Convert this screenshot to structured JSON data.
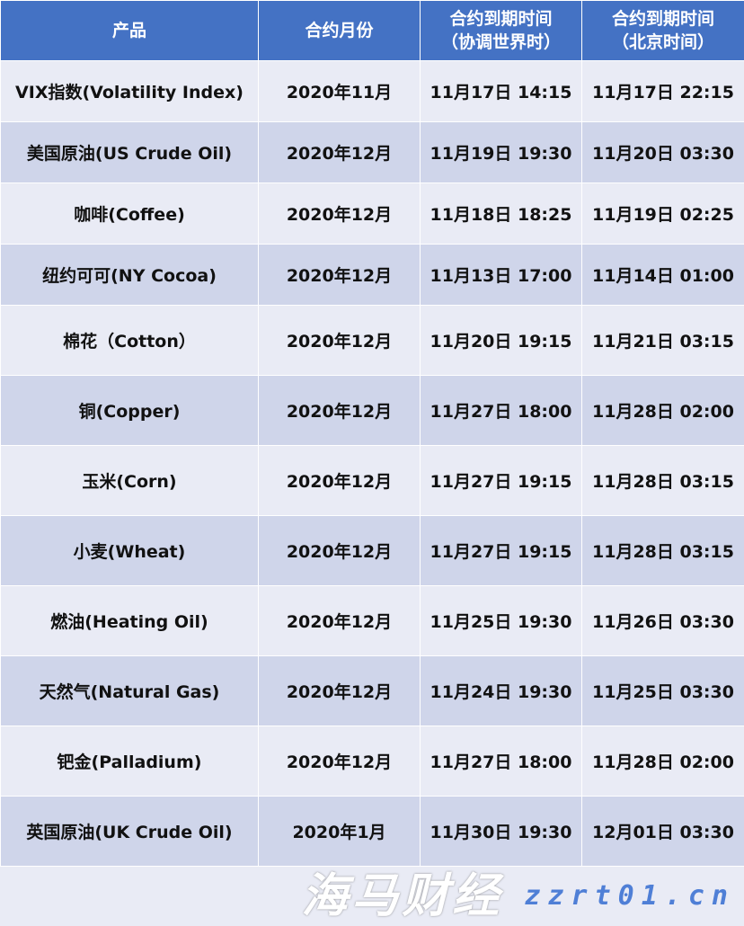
{
  "header": {
    "product": "产品",
    "month": "合约月份",
    "utc_line1": "合约到期时间",
    "utc_line2": "（协调世界时）",
    "bj_line1": "合约到期时间",
    "bj_line2": "（北京时间）"
  },
  "rows": [
    {
      "product": "VIX指数(Volatility Index)",
      "month": "2020年11月",
      "utc": "11月17日 14:15",
      "bj": "11月17日 22:15"
    },
    {
      "product": "美国原油(US Crude Oil)",
      "month": "2020年12月",
      "utc": "11月19日 19:30",
      "bj": "11月20日 03:30"
    },
    {
      "product": "咖啡(Coffee)",
      "month": "2020年12月",
      "utc": "11月18日 18:25",
      "bj": "11月19日 02:25"
    },
    {
      "product": "纽约可可(NY Cocoa)",
      "month": "2020年12月",
      "utc": "11月13日 17:00",
      "bj": "11月14日 01:00"
    },
    {
      "product": "棉花（Cotton）",
      "month": "2020年12月",
      "utc": "11月20日 19:15",
      "bj": "11月21日 03:15"
    },
    {
      "product": "铜(Copper)",
      "month": "2020年12月",
      "utc": "11月27日 18:00",
      "bj": "11月28日 02:00"
    },
    {
      "product": "玉米(Corn)",
      "month": "2020年12月",
      "utc": "11月27日 19:15",
      "bj": "11月28日 03:15"
    },
    {
      "product": "小麦(Wheat)",
      "month": "2020年12月",
      "utc": "11月27日 19:15",
      "bj": "11月28日 03:15"
    },
    {
      "product": "燃油(Heating Oil)",
      "month": "2020年12月",
      "utc": "11月25日 19:30",
      "bj": "11月26日 03:30"
    },
    {
      "product": "天然气(Natural Gas)",
      "month": "2020年12月",
      "utc": "11月24日 19:30",
      "bj": "11月25日 03:30"
    },
    {
      "product": "钯金(Palladium)",
      "month": "2020年12月",
      "utc": "11月27日 18:00",
      "bj": "11月28日 02:00"
    },
    {
      "product": "英国原油(UK Crude Oil)",
      "month": "2020年1月",
      "utc": "11月30日 19:30",
      "bj": "12月01日 03:30"
    }
  ],
  "watermark": {
    "brand": "海马财经",
    "url": "zzrt01.cn"
  },
  "colors": {
    "header_bg": "#4472c4",
    "row_light": "#e9ebf5",
    "row_dark": "#cfd5ea"
  }
}
